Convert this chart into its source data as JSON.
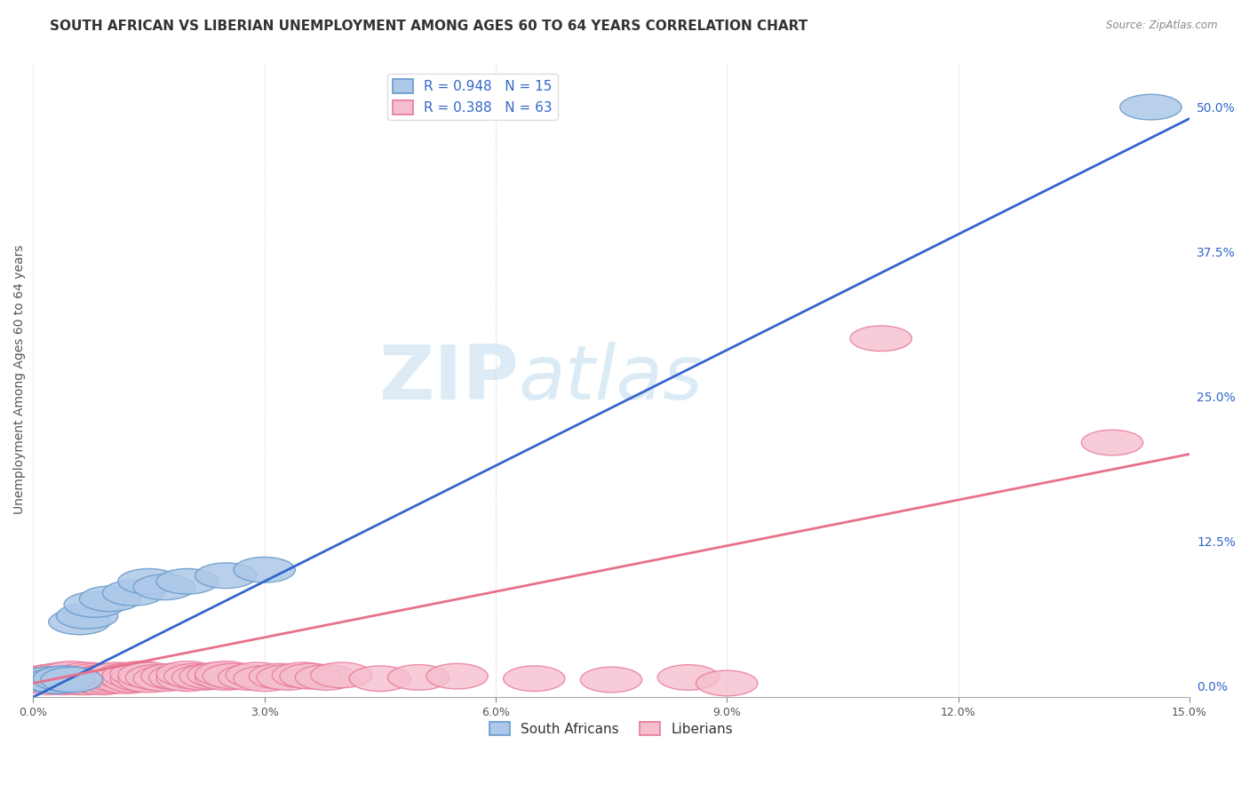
{
  "title": "SOUTH AFRICAN VS LIBERIAN UNEMPLOYMENT AMONG AGES 60 TO 64 YEARS CORRELATION CHART",
  "source": "Source: ZipAtlas.com",
  "ylabel": "Unemployment Among Ages 60 to 64 years",
  "xlim": [
    0.0,
    0.15
  ],
  "ylim": [
    -0.01,
    0.54
  ],
  "xticks": [
    0.0,
    0.03,
    0.06,
    0.09,
    0.12,
    0.15
  ],
  "xticklabels": [
    "0.0%",
    "3.0%",
    "6.0%",
    "9.0%",
    "12.0%",
    "15.0%"
  ],
  "yticks_right": [
    0.0,
    0.125,
    0.25,
    0.375,
    0.5
  ],
  "ytick_right_labels": [
    "0.0%",
    "12.5%",
    "25.0%",
    "37.5%",
    "50.0%"
  ],
  "sa_color": "#adc8e8",
  "sa_edge": "#6699cc",
  "lib_color": "#f5bece",
  "lib_edge": "#e87898",
  "sa_line_color": "#3366cc",
  "lib_line_color": "#e8708a",
  "sa_R": 0.948,
  "sa_N": 15,
  "lib_R": 0.388,
  "lib_N": 63,
  "sa_scatter_x": [
    0.002,
    0.003,
    0.004,
    0.005,
    0.006,
    0.007,
    0.008,
    0.01,
    0.013,
    0.015,
    0.017,
    0.02,
    0.025,
    0.03,
    0.145
  ],
  "sa_scatter_y": [
    0.005,
    0.004,
    0.006,
    0.005,
    0.055,
    0.06,
    0.07,
    0.075,
    0.08,
    0.09,
    0.085,
    0.09,
    0.095,
    0.1,
    0.5
  ],
  "lib_scatter_x": [
    0.001,
    0.002,
    0.002,
    0.003,
    0.003,
    0.004,
    0.004,
    0.004,
    0.005,
    0.005,
    0.005,
    0.006,
    0.006,
    0.007,
    0.007,
    0.007,
    0.008,
    0.008,
    0.009,
    0.009,
    0.01,
    0.01,
    0.011,
    0.011,
    0.012,
    0.012,
    0.013,
    0.013,
    0.014,
    0.014,
    0.015,
    0.015,
    0.016,
    0.017,
    0.018,
    0.019,
    0.02,
    0.02,
    0.021,
    0.022,
    0.023,
    0.024,
    0.025,
    0.025,
    0.026,
    0.028,
    0.029,
    0.03,
    0.032,
    0.033,
    0.035,
    0.036,
    0.038,
    0.04,
    0.045,
    0.05,
    0.055,
    0.065,
    0.075,
    0.085,
    0.09,
    0.11,
    0.14
  ],
  "lib_scatter_y": [
    0.005,
    0.003,
    0.007,
    0.004,
    0.008,
    0.003,
    0.006,
    0.009,
    0.004,
    0.007,
    0.01,
    0.003,
    0.006,
    0.003,
    0.006,
    0.009,
    0.004,
    0.008,
    0.003,
    0.007,
    0.004,
    0.008,
    0.005,
    0.009,
    0.004,
    0.008,
    0.005,
    0.009,
    0.006,
    0.01,
    0.005,
    0.009,
    0.007,
    0.006,
    0.008,
    0.007,
    0.006,
    0.01,
    0.008,
    0.007,
    0.008,
    0.009,
    0.007,
    0.01,
    0.008,
    0.007,
    0.009,
    0.006,
    0.008,
    0.007,
    0.009,
    0.008,
    0.007,
    0.009,
    0.006,
    0.007,
    0.008,
    0.006,
    0.005,
    0.007,
    0.002,
    0.3,
    0.21
  ],
  "sa_line_x": [
    0.0,
    0.15
  ],
  "sa_line_y": [
    -0.01,
    0.49
  ],
  "lib_line_x": [
    0.0,
    0.15
  ],
  "lib_line_y": [
    0.002,
    0.2
  ],
  "watermark_zip": "ZIP",
  "watermark_atlas": "atlas",
  "background_color": "#ffffff",
  "grid_color": "#cccccc",
  "title_fontsize": 11,
  "axis_label_fontsize": 10,
  "tick_fontsize": 9,
  "legend_fontsize": 11
}
